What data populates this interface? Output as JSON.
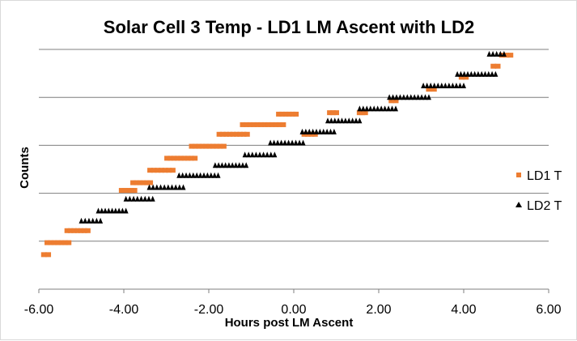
{
  "chart_data": {
    "type": "scatter",
    "title": "Solar Cell 3 Temp - LD1 LM Ascent with LD2",
    "xlabel": "Hours post LM Ascent",
    "ylabel": "Counts",
    "xlim": [
      -6,
      6
    ],
    "ylim": [
      0,
      5
    ],
    "x_ticks": [
      -6,
      -4,
      -2,
      0,
      2,
      4,
      6
    ],
    "x_tick_labels": [
      "-6.00",
      "-4.00",
      "-2.00",
      "0.00",
      "2.00",
      "4.00",
      "6.00"
    ],
    "grid": "horizontal",
    "y_tick_labels_shown": false,
    "legend_placement": "right",
    "colors": {
      "LD1 T": "#ED7D31",
      "LD2 T": "#000000",
      "gridline": "#7f7f7f",
      "axis": "#7f7f7f"
    },
    "series": [
      {
        "name": "LD1 T",
        "marker": "square",
        "segments": [
          {
            "x": [
              -5.88,
              -5.78
            ],
            "y": 0.72
          },
          {
            "x": [
              -5.8,
              -5.3
            ],
            "y": 0.97
          },
          {
            "x": [
              -5.33,
              -4.85
            ],
            "y": 1.22
          },
          {
            "x": [
              -4.05,
              -3.75
            ],
            "y": 2.06
          },
          {
            "x": [
              -3.78,
              -3.38
            ],
            "y": 2.22
          },
          {
            "x": [
              -3.38,
              -2.85
            ],
            "y": 2.48
          },
          {
            "x": [
              -2.98,
              -2.33
            ],
            "y": 2.73
          },
          {
            "x": [
              -2.4,
              -1.65
            ],
            "y": 2.98
          },
          {
            "x": [
              -1.75,
              -1.1
            ],
            "y": 3.23
          },
          {
            "x": [
              -1.2,
              -0.25
            ],
            "y": 3.43
          },
          {
            "x": [
              -0.35,
              0.05
            ],
            "y": 3.65
          },
          {
            "x": [
              0.25,
              0.5
            ],
            "y": 3.23
          },
          {
            "x": [
              0.85,
              1.0
            ],
            "y": 3.68
          },
          {
            "x": [
              1.55,
              1.68
            ],
            "y": 3.68
          },
          {
            "x": [
              2.3,
              2.4
            ],
            "y": 3.93
          },
          {
            "x": [
              3.18,
              3.3
            ],
            "y": 4.17
          },
          {
            "x": [
              3.95,
              4.05
            ],
            "y": 4.42
          },
          {
            "x": [
              4.7,
              4.8
            ],
            "y": 4.65
          },
          {
            "x": [
              4.9,
              5.1
            ],
            "y": 4.88
          }
        ]
      },
      {
        "name": "LD2 T",
        "marker": "triangle",
        "segments": [
          {
            "x": [
              -5.0,
              -4.55
            ],
            "y": 1.42
          },
          {
            "x": [
              -4.6,
              -3.95
            ],
            "y": 1.63
          },
          {
            "x": [
              -3.95,
              -3.32
            ],
            "y": 1.88
          },
          {
            "x": [
              -3.4,
              -2.6
            ],
            "y": 2.12
          },
          {
            "x": [
              -2.7,
              -1.78
            ],
            "y": 2.37
          },
          {
            "x": [
              -1.85,
              -1.12
            ],
            "y": 2.58
          },
          {
            "x": [
              -1.15,
              -0.45
            ],
            "y": 2.8
          },
          {
            "x": [
              -0.55,
              0.22
            ],
            "y": 3.05
          },
          {
            "x": [
              0.2,
              0.95
            ],
            "y": 3.28
          },
          {
            "x": [
              0.8,
              1.55
            ],
            "y": 3.51
          },
          {
            "x": [
              1.55,
              2.4
            ],
            "y": 3.76
          },
          {
            "x": [
              2.25,
              3.18
            ],
            "y": 4.0
          },
          {
            "x": [
              3.05,
              4.0
            ],
            "y": 4.24
          },
          {
            "x": [
              3.85,
              4.75
            ],
            "y": 4.48
          },
          {
            "x": [
              4.6,
              4.95
            ],
            "y": 4.9
          }
        ]
      }
    ]
  }
}
